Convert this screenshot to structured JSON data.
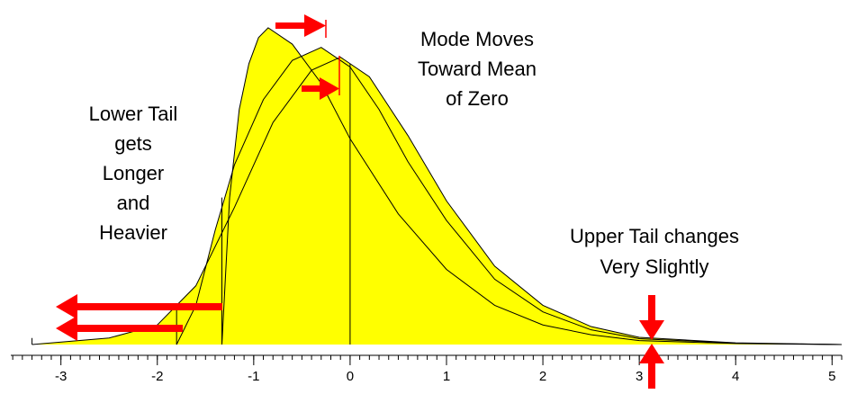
{
  "chart_data": {
    "type": "area",
    "xlim": [
      -3.52,
      5.1
    ],
    "ylim": [
      0,
      1
    ],
    "xticks": [
      -3,
      -2,
      -1,
      0,
      1,
      2,
      3,
      4,
      5
    ],
    "minor_tick_step": 0.1,
    "fill_color": "#ffff00",
    "line_color": "#000000",
    "reference_line": 0,
    "series": [
      {
        "x": [
          -3.3,
          -2.5,
          -2,
          -1.6,
          -1.2,
          -0.8,
          -0.4,
          -0.1,
          0.2,
          0.6,
          1,
          1.5,
          2,
          2.5,
          3,
          4,
          5.1
        ],
        "values": [
          0,
          0.02,
          0.06,
          0.18,
          0.42,
          0.68,
          0.84,
          0.88,
          0.82,
          0.64,
          0.44,
          0.24,
          0.12,
          0.055,
          0.022,
          0.005,
          0
        ]
      },
      {
        "x": [
          -1.8,
          -1.6,
          -1.4,
          -1.2,
          -0.9,
          -0.6,
          -0.3,
          0,
          0.3,
          0.6,
          1,
          1.5,
          2,
          2.5,
          3,
          4,
          5.1
        ],
        "values": [
          0,
          0.12,
          0.35,
          0.55,
          0.75,
          0.87,
          0.91,
          0.85,
          0.72,
          0.56,
          0.38,
          0.2,
          0.1,
          0.045,
          0.018,
          0.004,
          0
        ]
      },
      {
        "x": [
          -1.33,
          -1.25,
          -1.15,
          -1.05,
          -0.95,
          -0.85,
          -0.6,
          -0.3,
          0,
          0.5,
          1,
          1.5,
          2,
          2.5,
          3,
          4,
          5.1
        ],
        "values": [
          0,
          0.45,
          0.72,
          0.86,
          0.94,
          0.97,
          0.92,
          0.8,
          0.63,
          0.4,
          0.23,
          0.12,
          0.06,
          0.03,
          0.012,
          0.003,
          0
        ]
      }
    ],
    "annotations": [
      {
        "lines": [
          "Lower Tail",
          "gets",
          "Longer",
          "and",
          "Heavier"
        ]
      },
      {
        "lines": [
          "Mode Moves",
          "Toward Mean",
          "of Zero"
        ]
      },
      {
        "lines": [
          "Upper Tail changes",
          "Very Slightly"
        ]
      }
    ]
  }
}
